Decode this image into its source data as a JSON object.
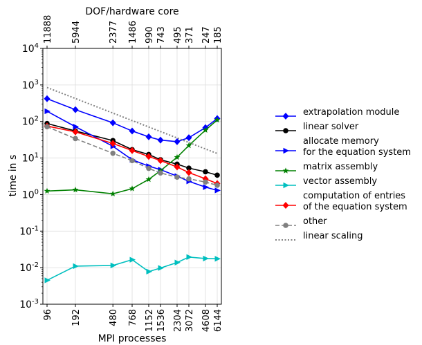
{
  "chart_data": {
    "type": "line",
    "xlabel": "MPI processes",
    "x2label": "DOF/hardware core",
    "ylabel": "time in s",
    "yscale": "log",
    "xscale": "log",
    "ylim": [
      0.001,
      10000
    ],
    "xlim": [
      96,
      6144
    ],
    "grid": true,
    "legend_position": "right",
    "x": [
      96,
      192,
      480,
      768,
      1152,
      1536,
      2304,
      3072,
      4608,
      6144
    ],
    "x_tick_labels": [
      "96",
      "192",
      "480",
      "768",
      "1152",
      "1536",
      "2304",
      "3072",
      "4608",
      "6144"
    ],
    "x2_tick_labels": [
      "11888",
      "5944",
      "2377",
      "1486",
      "990",
      "743",
      "495",
      "371",
      "247",
      "185"
    ],
    "y_tick_exponents": [
      -3,
      -2,
      -1,
      0,
      1,
      2,
      3,
      4
    ],
    "y_tick_base": "10",
    "series": [
      {
        "name": "extrapolation module",
        "color": "#0000ff",
        "marker": "diamond",
        "dash": "solid",
        "values": [
          420,
          210,
          92,
          55,
          38,
          31,
          28,
          36,
          68,
          120
        ]
      },
      {
        "name": "linear solver",
        "color": "#000000",
        "marker": "circle",
        "dash": "solid",
        "values": [
          88,
          55,
          30,
          17,
          12.5,
          9,
          6.8,
          5.3,
          4.2,
          3.4
        ]
      },
      {
        "name": "allocate memory\nfor the equation system",
        "color": "#0000ff",
        "marker": "triangle-right",
        "dash": "solid",
        "values": [
          190,
          72,
          21,
          9,
          6.0,
          4.8,
          3.2,
          2.3,
          1.6,
          1.3
        ]
      },
      {
        "name": "matrix assembly",
        "color": "#008000",
        "marker": "star",
        "dash": "solid",
        "values": [
          1.25,
          1.35,
          1.05,
          1.45,
          2.6,
          4.5,
          10.5,
          22,
          58,
          110
        ]
      },
      {
        "name": "vector assembly",
        "color": "#00bfbf",
        "marker": "triangle-right",
        "dash": "solid",
        "values": [
          0.0045,
          0.011,
          0.0115,
          0.0165,
          0.0078,
          0.0098,
          0.0138,
          0.0195,
          0.0178,
          0.0175
        ]
      },
      {
        "name": "computation of entries\nof the equation system",
        "color": "#ff0000",
        "marker": "diamond",
        "dash": "solid",
        "values": [
          75,
          52,
          25,
          16,
          11,
          8.5,
          5.7,
          4.0,
          2.7,
          2.0
        ]
      },
      {
        "name": "other",
        "color": "#808080",
        "marker": "circle",
        "dash": "dashed",
        "values": [
          72,
          34,
          13.5,
          8.5,
          5.2,
          3.9,
          3.0,
          2.7,
          2.2,
          1.8
        ]
      },
      {
        "name": "linear scaling",
        "color": "#808080",
        "marker": "none",
        "dash": "dotted",
        "values": [
          850,
          425,
          170,
          106,
          70.8,
          53.1,
          35.4,
          26.6,
          17.7,
          13.3
        ]
      }
    ]
  }
}
